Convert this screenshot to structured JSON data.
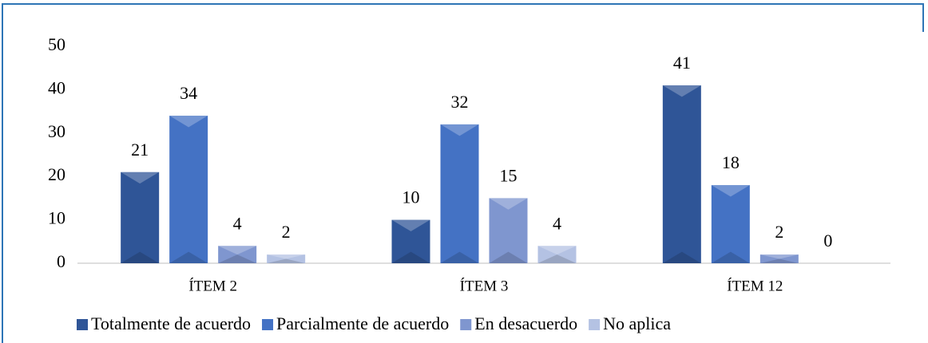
{
  "chart_data": {
    "type": "bar",
    "categories": [
      "ÍTEM 2",
      "ÍTEM 3",
      "ÍTEM 12"
    ],
    "series": [
      {
        "name": "Totalmente de acuerdo",
        "color": "#2f5597",
        "values": [
          21,
          10,
          41
        ]
      },
      {
        "name": "Parcialmente de acuerdo",
        "color": "#4472c4",
        "values": [
          34,
          32,
          18
        ]
      },
      {
        "name": "En desacuerdo",
        "color": "#7f96cf",
        "values": [
          4,
          15,
          2
        ]
      },
      {
        "name": "No aplica",
        "color": "#b4c2e3",
        "values": [
          2,
          4,
          0
        ]
      }
    ],
    "ylim": [
      0,
      50
    ],
    "yticks": [
      0,
      10,
      20,
      30,
      40,
      50
    ],
    "grid": false,
    "legend": "bottom"
  }
}
